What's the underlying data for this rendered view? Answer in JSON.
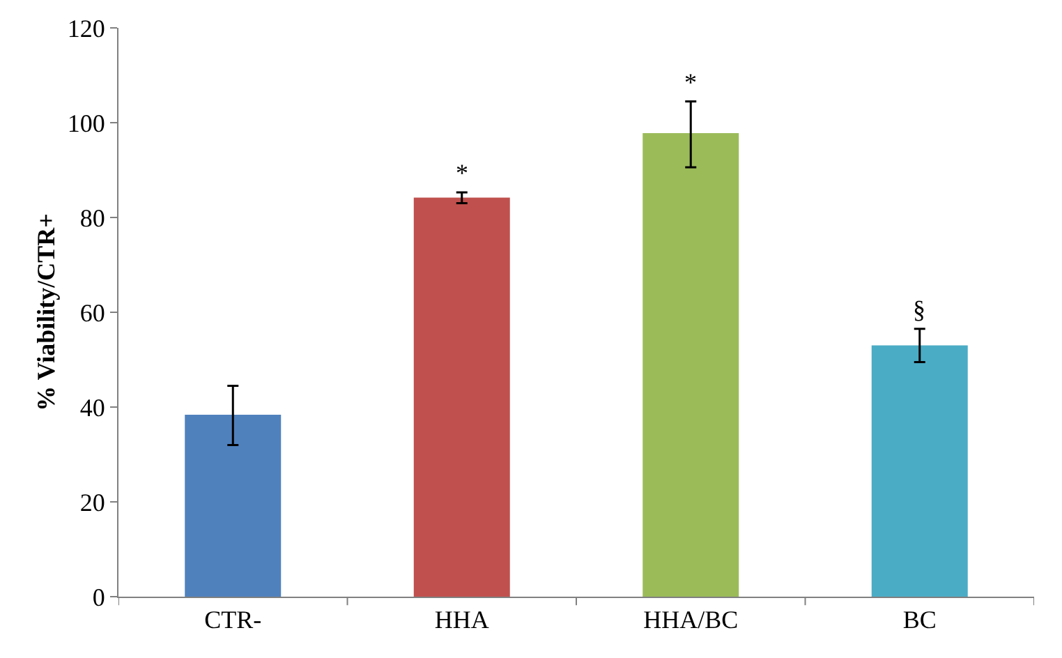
{
  "chart_data": {
    "type": "bar",
    "ylabel": "% Viability/CTR+",
    "categories": [
      "CTR-",
      "HHA",
      "HHA/BC",
      "BC"
    ],
    "values": [
      38.4,
      84.2,
      97.8,
      53
    ],
    "colors": [
      "#4f81bd",
      "#c0504d",
      "#9bbb59",
      "#4bacc6"
    ],
    "errors": [
      [
        32,
        44.5
      ],
      [
        83,
        85.3
      ],
      [
        90.6,
        104.5
      ],
      [
        49.5,
        56.5
      ]
    ],
    "ylim": [
      0,
      120
    ],
    "yticks": [
      0,
      20,
      40,
      60,
      80,
      100,
      120
    ],
    "grid": false,
    "annotations": [
      {
        "text": "*",
        "x": "HHA",
        "y": 85.3
      },
      {
        "text": "*",
        "x": "HHA/BC",
        "y": 104.5
      },
      {
        "text": "§",
        "x": "BC",
        "y": 56.5
      }
    ]
  }
}
